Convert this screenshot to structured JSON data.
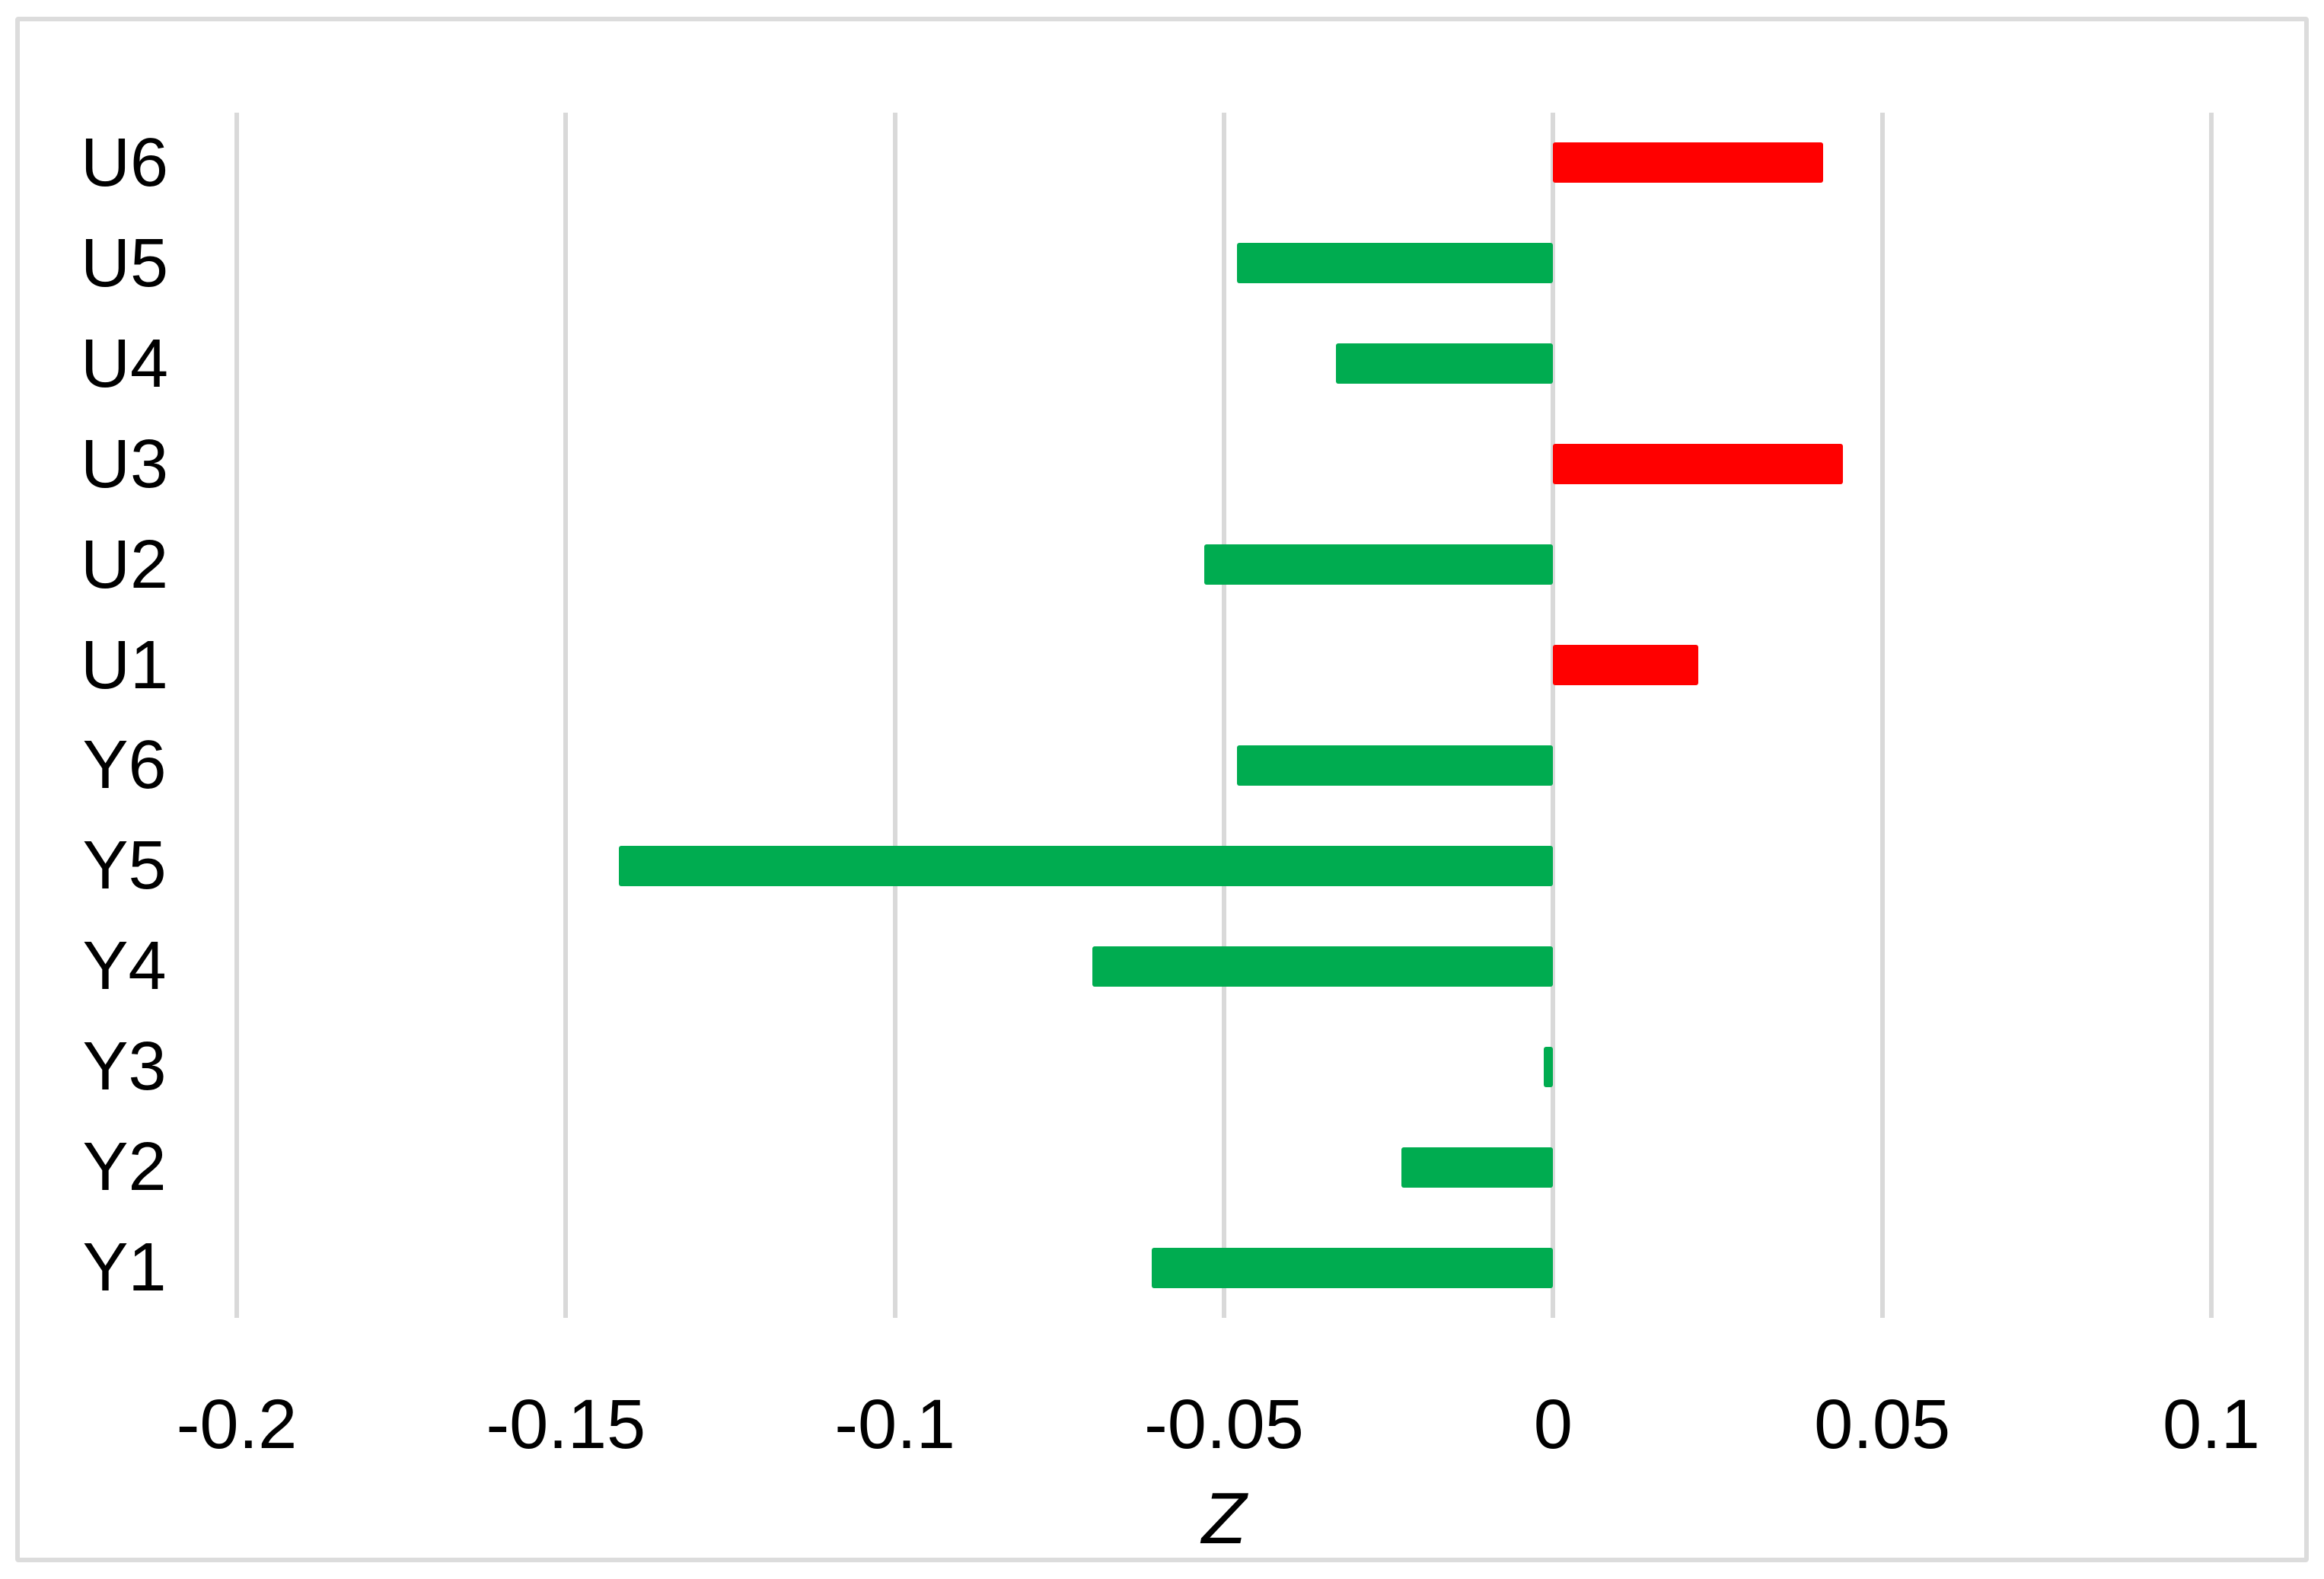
{
  "chart_data": {
    "type": "bar",
    "orientation": "horizontal",
    "title": "",
    "xlabel": "Z",
    "ylabel": "",
    "xlim": [
      -0.2,
      0.1
    ],
    "xtick_values": [
      -0.2,
      -0.15,
      -0.1,
      -0.05,
      0,
      0.05,
      0.1
    ],
    "xtick_labels": [
      "-0.2",
      "-0.15",
      "-0.1",
      "-0.05",
      "0",
      "0.05",
      "0.1"
    ],
    "grid": "vertical-only",
    "legend": "none",
    "categories": [
      "U6",
      "U5",
      "U4",
      "U3",
      "U2",
      "U1",
      "Y6",
      "Y5",
      "Y4",
      "Y3",
      "Y2",
      "Y1"
    ],
    "values": [
      0.041,
      -0.048,
      -0.033,
      0.044,
      -0.053,
      0.022,
      -0.048,
      -0.142,
      -0.07,
      -0.0014,
      -0.023,
      -0.061
    ],
    "bar_colors": [
      "#FF0000",
      "#00AC50",
      "#00AC50",
      "#FF0000",
      "#00AC50",
      "#FF0000",
      "#00AC50",
      "#00AC50",
      "#00AC50",
      "#00AC50",
      "#00AC50",
      "#00AC50"
    ],
    "colors": {
      "positive_bar": "#FF0000",
      "negative_bar": "#00AC50",
      "gridline": "#D9D9D9",
      "frame_border": "#DCDCDC",
      "text": "#000000",
      "background": "#FFFFFF"
    }
  }
}
